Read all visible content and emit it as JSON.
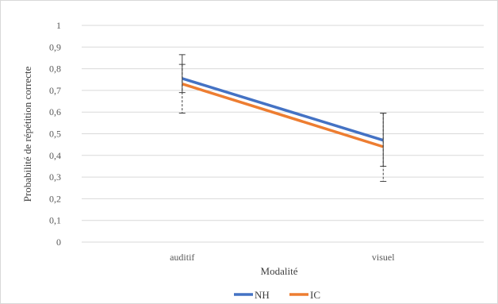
{
  "chart_data": {
    "type": "line",
    "categories": [
      "auditif",
      "visuel"
    ],
    "series": [
      {
        "name": "NH",
        "values": [
          0.755,
          0.47
        ],
        "error_upper": [
          0.865,
          0.595
        ],
        "error_lower": [
          0.69,
          0.35
        ],
        "color": "#4472c4"
      },
      {
        "name": "IC",
        "values": [
          0.73,
          0.44
        ],
        "error_upper": [
          0.82,
          0.595
        ],
        "error_lower": [
          0.595,
          0.28
        ],
        "color": "#ed7d31"
      }
    ],
    "title": "",
    "xlabel": "Modalité",
    "ylabel": "Probabilité de répétition correcte",
    "ylim": [
      0,
      1
    ],
    "yticks": [
      "0",
      "0,1",
      "0,2",
      "0,3",
      "0,4",
      "0,5",
      "0,6",
      "0,7",
      "0,8",
      "0,9",
      "1"
    ],
    "grid": true,
    "legend_position": "bottom",
    "gridline_color": "#d9d9d9"
  }
}
